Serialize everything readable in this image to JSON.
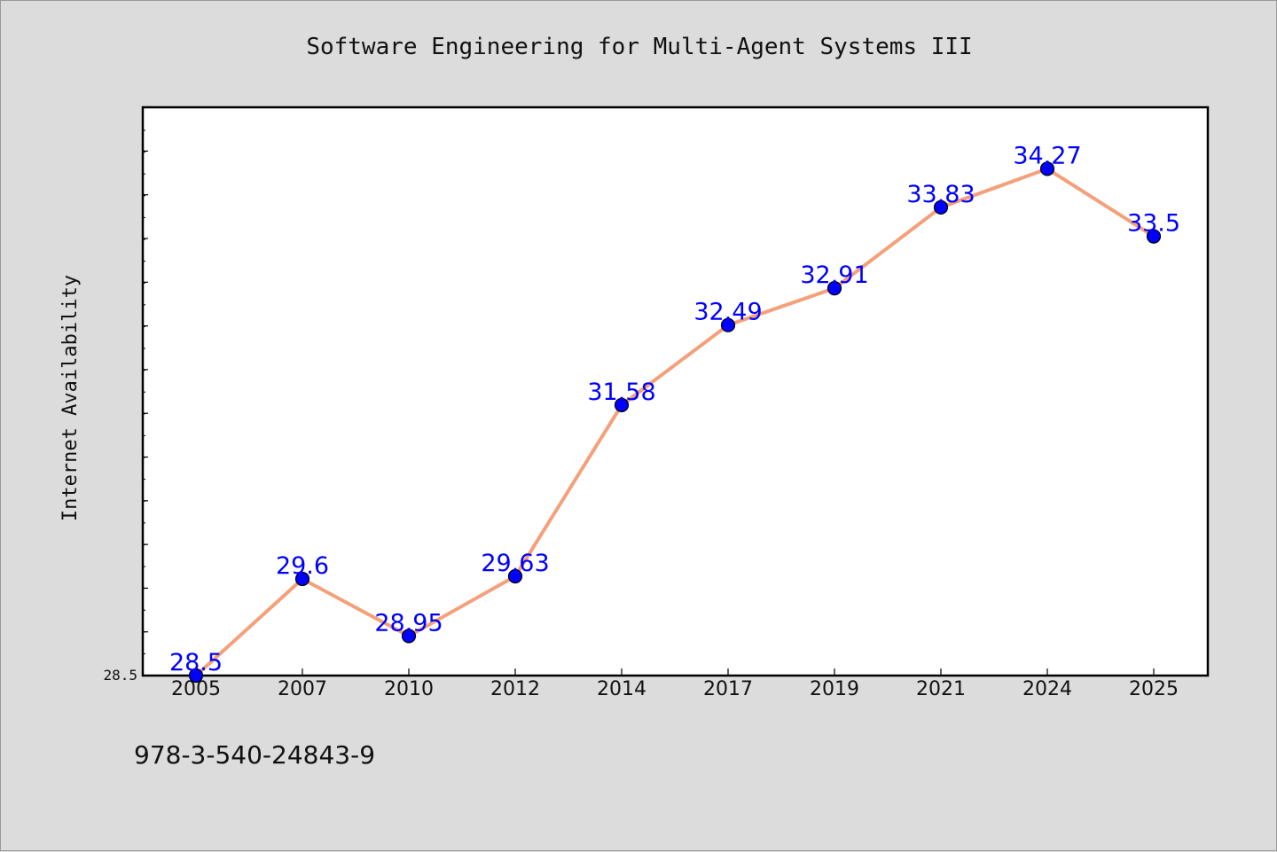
{
  "chart_data": {
    "type": "line",
    "title": "Software Engineering for Multi-Agent Systems III",
    "ylabel": "Internet Availability",
    "xlabel": "",
    "categories": [
      "2005",
      "2007",
      "2010",
      "2012",
      "2014",
      "2017",
      "2019",
      "2021",
      "2024",
      "2025"
    ],
    "series": [
      {
        "values": [
          28.5,
          29.6,
          28.95,
          29.63,
          31.58,
          32.49,
          32.91,
          33.83,
          34.27,
          33.5
        ],
        "labels": [
          "28.5",
          "29.6",
          "28.95",
          "29.63",
          "31.58",
          "32.49",
          "32.91",
          "33.83",
          "34.27",
          "33.5"
        ],
        "line_color": "#f4a07a",
        "marker_color": "#0000ff"
      }
    ],
    "ytick_labels": [
      {
        "value": 28.5,
        "label": "28.5"
      }
    ],
    "ylim": [
      28.5,
      34.97
    ],
    "grid": false,
    "legend": "none"
  },
  "footer": {
    "isbn": "978-3-540-24843-9"
  },
  "colors": {
    "background": "#dcdcdc",
    "plot_background": "#ffffff",
    "label_color": "#0000ff"
  }
}
